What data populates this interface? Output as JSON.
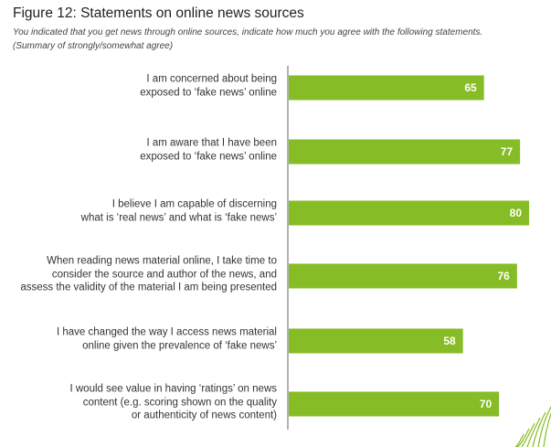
{
  "title": "Figure 12: Statements on online news sources",
  "subtitle": "You indicated that you get news through online sources, indicate how much you agree with the following statements.",
  "note": "(Summary of strongly/somewhat agree)",
  "colors": {
    "bar": "#86bc25",
    "axis": "#999999",
    "value_text": "#ffffff",
    "logo": "#86bc25"
  },
  "chart_data": {
    "type": "bar",
    "orientation": "horizontal",
    "categories": [
      [
        "I am concerned about being",
        "exposed to ‘fake news’ online"
      ],
      [
        "I am aware that I have been",
        "exposed to ‘fake news’ online"
      ],
      [
        "I believe I am capable of discerning",
        "what is ‘real news’ and what is ‘fake news’"
      ],
      [
        "When reading news material online, I take time to",
        "consider the source and author of the news, and",
        "assess the validity of the material I am being presented"
      ],
      [
        "I have changed the way I access news material",
        "online given the prevalence of ‘fake news’"
      ],
      [
        "I would see value in having ‘ratings’ on news",
        "content (e.g. scoring shown on the quality",
        "or authenticity of news content)"
      ]
    ],
    "values": [
      65,
      77,
      80,
      76,
      58,
      70
    ],
    "xlim": [
      0,
      80
    ],
    "grid": false,
    "legend": "none"
  }
}
